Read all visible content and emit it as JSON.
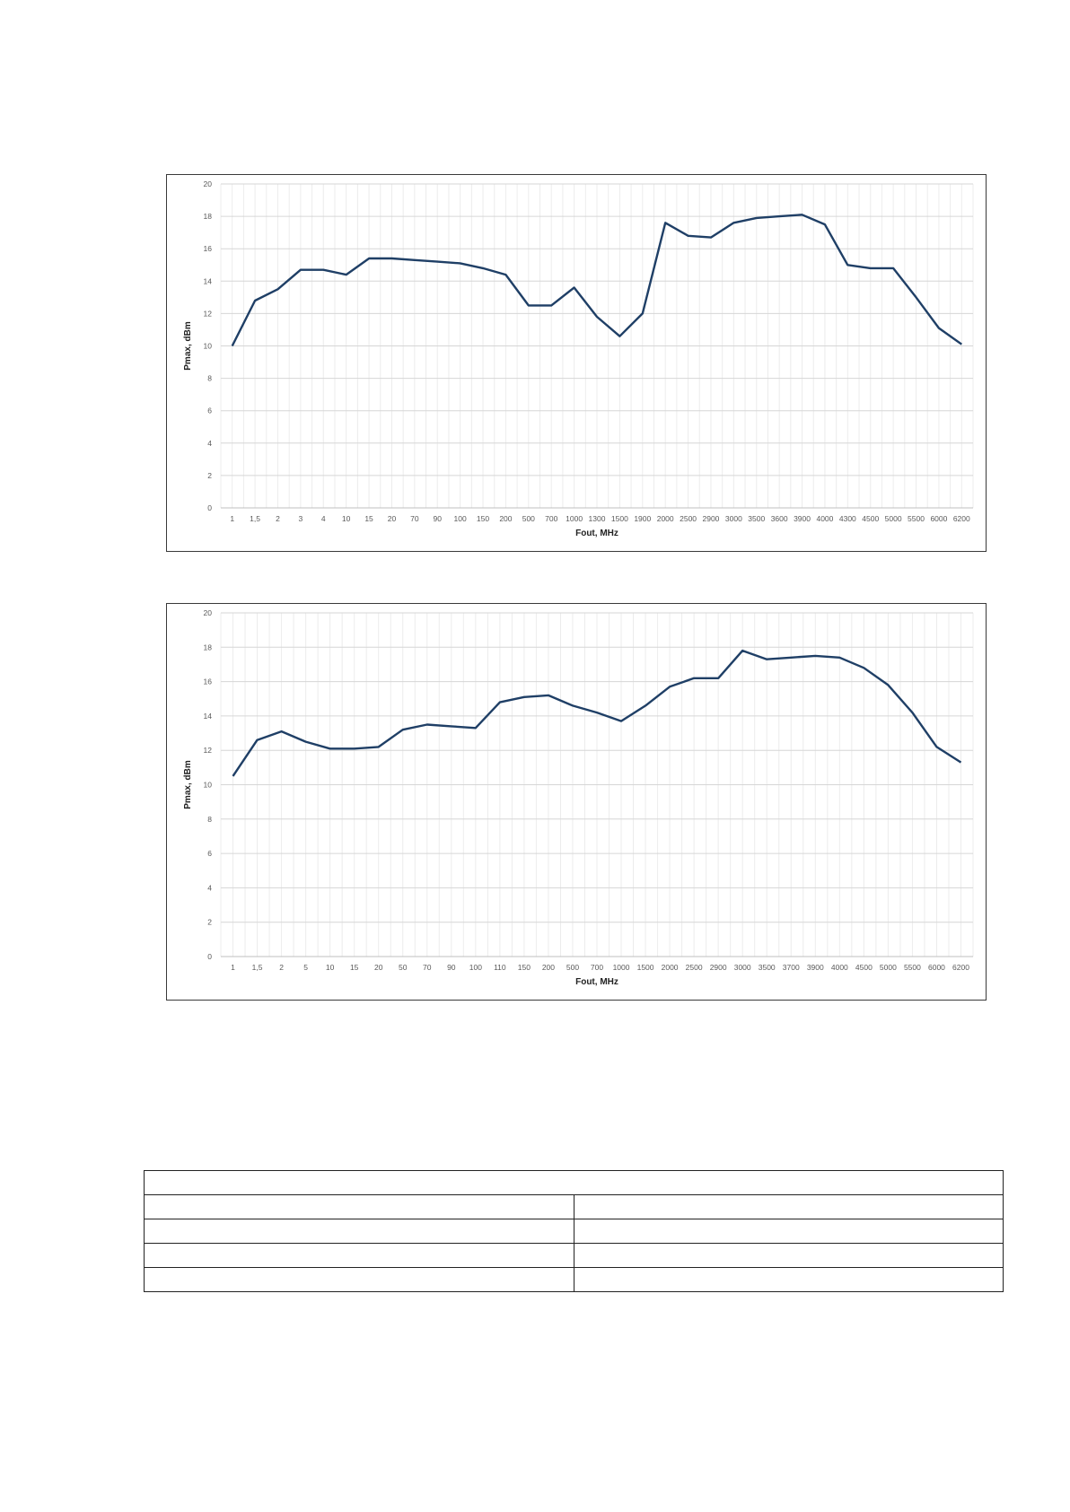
{
  "chart_data": [
    {
      "type": "line",
      "xlabel": "Fout, MHz",
      "ylabel": "Pmax, dBm",
      "ylim": [
        0,
        20
      ],
      "yticks": [
        0,
        2,
        4,
        6,
        8,
        10,
        12,
        14,
        16,
        18,
        20
      ],
      "grid": true,
      "categories": [
        "1",
        "1,5",
        "2",
        "3",
        "4",
        "10",
        "15",
        "20",
        "70",
        "90",
        "100",
        "150",
        "200",
        "500",
        "700",
        "1000",
        "1300",
        "1500",
        "1900",
        "2000",
        "2500",
        "2900",
        "3000",
        "3500",
        "3600",
        "3900",
        "4000",
        "4300",
        "4500",
        "5000",
        "5500",
        "6000",
        "6200"
      ],
      "values": [
        10.0,
        12.8,
        13.5,
        14.7,
        14.7,
        14.4,
        15.4,
        15.4,
        15.3,
        15.2,
        15.1,
        14.8,
        14.4,
        12.5,
        12.5,
        13.6,
        11.8,
        10.6,
        12.0,
        17.6,
        16.8,
        16.7,
        17.6,
        17.9,
        18.0,
        18.1,
        17.5,
        15.0,
        14.8,
        14.8,
        13.0,
        11.1,
        10.1
      ],
      "line_color": "#1f3f66"
    },
    {
      "type": "line",
      "xlabel": "Fout, MHz",
      "ylabel": "Pmax, dBm",
      "ylim": [
        0,
        20
      ],
      "yticks": [
        0,
        2,
        4,
        6,
        8,
        10,
        12,
        14,
        16,
        18,
        20
      ],
      "grid": true,
      "categories": [
        "1",
        "1,5",
        "2",
        "5",
        "10",
        "15",
        "20",
        "50",
        "70",
        "90",
        "100",
        "110",
        "150",
        "200",
        "500",
        "700",
        "1000",
        "1500",
        "2000",
        "2500",
        "2900",
        "3000",
        "3500",
        "3700",
        "3900",
        "4000",
        "4500",
        "5000",
        "5500",
        "6000",
        "6200"
      ],
      "values": [
        10.5,
        12.6,
        13.1,
        12.5,
        12.1,
        12.1,
        12.2,
        13.2,
        13.5,
        13.4,
        13.3,
        14.8,
        15.1,
        15.2,
        14.6,
        14.2,
        13.7,
        14.6,
        15.7,
        16.2,
        16.2,
        17.8,
        17.3,
        17.4,
        17.5,
        17.4,
        16.8,
        15.8,
        14.2,
        12.2,
        11.3
      ],
      "line_color": "#1f3f66"
    }
  ],
  "table": {
    "rows": [
      [
        ""
      ],
      [
        "",
        ""
      ],
      [
        "",
        ""
      ],
      [
        "",
        ""
      ],
      [
        "",
        ""
      ]
    ]
  }
}
